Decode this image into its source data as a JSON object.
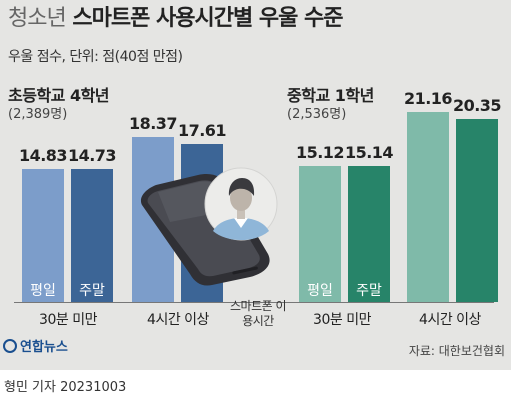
{
  "header": {
    "title_prefix": "청소년",
    "title_main": "스마트폰 사용시간별 우울 수준",
    "subtitle": "우울 점수, 단위: 점(40점 만점)"
  },
  "footer": {
    "logo": "연합뉴스",
    "source": "자료: 대한보건협회",
    "credit": "형민 기자  20231003"
  },
  "chart_data": {
    "type": "bar",
    "title": "청소년 스마트폰 사용시간별 우울 수준",
    "ylabel": "우울 점수, 단위: 점(40점 만점)",
    "xlabel": "스마트폰 이용시간",
    "categories": [
      "30분 미만",
      "4시간 이상"
    ],
    "series_labels": [
      "평일",
      "주말"
    ],
    "groups": [
      {
        "name": "초등학교 4학년",
        "count": "(2,389명)",
        "colors": [
          "#7c9dca",
          "#3c6596"
        ],
        "values": [
          [
            14.83,
            14.73
          ],
          [
            18.37,
            17.61
          ]
        ]
      },
      {
        "name": "중학교 1학년",
        "count": "(2,536명)",
        "colors": [
          "#7fbaa9",
          "#278469"
        ],
        "values": [
          [
            15.12,
            15.14
          ],
          [
            21.16,
            20.35
          ]
        ]
      }
    ]
  }
}
